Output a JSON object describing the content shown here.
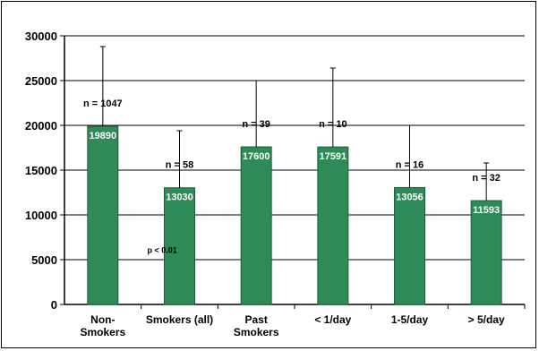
{
  "chart_data": {
    "type": "bar",
    "title": "",
    "xlabel": "",
    "ylabel": "",
    "ylim": [
      0,
      30000
    ],
    "yticks": [
      0,
      5000,
      10000,
      15000,
      20000,
      25000,
      30000
    ],
    "grid": true,
    "categories": [
      [
        "Non-",
        "Smokers"
      ],
      [
        "Smokers (all)"
      ],
      [
        "Past",
        "Smokers"
      ],
      [
        "< 1/day"
      ],
      [
        "1-5/day"
      ],
      [
        "> 5/day"
      ]
    ],
    "values": [
      19890,
      13030,
      17600,
      17591,
      13056,
      11593
    ],
    "error_upper": [
      28800,
      19400,
      25000,
      26400,
      20000,
      15800
    ],
    "n_labels": [
      "n = 1047",
      "n = 58",
      "n = 39",
      "n = 10",
      "n = 16",
      "n = 32"
    ],
    "bar_color": "#2e8b57",
    "annotation": "p < 0.01"
  }
}
